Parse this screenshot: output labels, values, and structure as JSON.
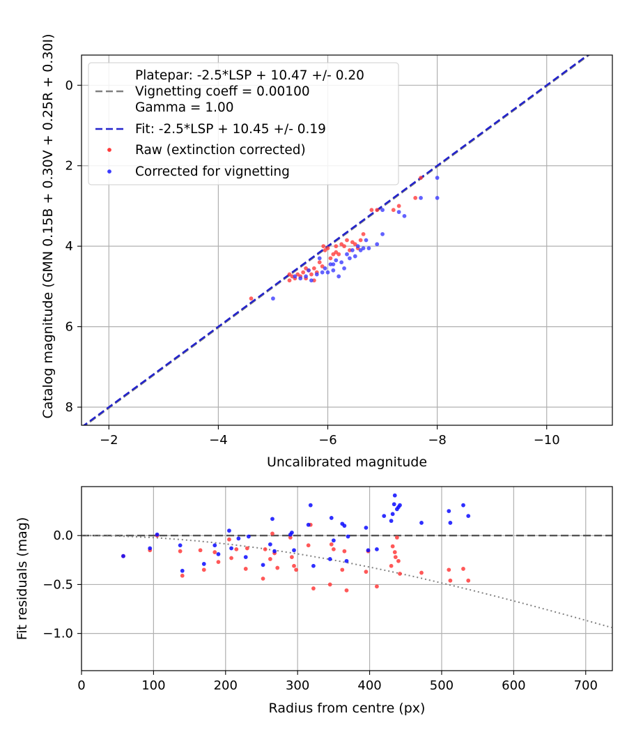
{
  "chart_data": [
    {
      "type": "scatter",
      "xlabel": "Uncalibrated magnitude",
      "ylabel": "Catalog magnitude (GMN 0.15B + 0.30V + 0.25R + 0.30I)",
      "xlim": [
        -1.5,
        -11.2
      ],
      "ylim": [
        8.45,
        -0.75
      ],
      "x_inverted": true,
      "y_inverted": true,
      "x_ticks": [
        -2,
        -4,
        -6,
        -8,
        -10
      ],
      "x_tick_labels": [
        "−2",
        "−4",
        "−6",
        "−8",
        "−10"
      ],
      "y_ticks": [
        0,
        2,
        4,
        6,
        8
      ],
      "y_tick_labels": [
        "0",
        "2",
        "4",
        "6",
        "8"
      ],
      "grid": true,
      "legend_position": "top-left",
      "legend": [
        {
          "label_lines": [
            "Platepar: -2.5*LSP + 10.47 +/- 0.20",
            "Vignetting coeff = 0.00100",
            "Gamma = 1.00"
          ],
          "style": "dashed",
          "color": "#808080"
        },
        {
          "label_lines": [
            "Fit: -2.5*LSP + 10.45 +/- 0.19"
          ],
          "style": "dashed",
          "color": "#2222cc"
        },
        {
          "label_lines": [
            "Raw (extinction corrected)"
          ],
          "style": "marker",
          "color": "#ff3b3b"
        },
        {
          "label_lines": [
            "Corrected for vignetting"
          ],
          "style": "marker",
          "color": "#3b3bff"
        }
      ],
      "lines": [
        {
          "name": "Platepar: -2.5*LSP + 10.47 +/- 0.20",
          "x": [
            -1.5,
            -11.2
          ],
          "y": [
            8.52,
            -1.18
          ],
          "color": "#808080",
          "style": "dashed"
        },
        {
          "name": "Fit: -2.5*LSP + 10.45 +/- 0.19",
          "x": [
            -1.5,
            -11.2
          ],
          "y": [
            8.5,
            -1.2
          ],
          "color": "#2222cc",
          "style": "dashed"
        }
      ],
      "series": [
        {
          "name": "Raw (extinction corrected)",
          "color": "#ff3b3b",
          "points": [
            [
              -4.6,
              5.3
            ],
            [
              -5.3,
              4.7
            ],
            [
              -5.35,
              4.75
            ],
            [
              -5.4,
              4.8
            ],
            [
              -5.45,
              4.7
            ],
            [
              -5.5,
              4.75
            ],
            [
              -5.55,
              4.65
            ],
            [
              -5.6,
              4.8
            ],
            [
              -5.65,
              4.6
            ],
            [
              -5.7,
              4.7
            ],
            [
              -5.75,
              4.55
            ],
            [
              -5.8,
              4.65
            ],
            [
              -5.85,
              4.4
            ],
            [
              -5.9,
              4.5
            ],
            [
              -5.92,
              4.0
            ],
            [
              -5.95,
              4.1
            ],
            [
              -6.0,
              4.05
            ],
            [
              -6.05,
              4.3
            ],
            [
              -6.1,
              4.2
            ],
            [
              -6.15,
              4.15
            ],
            [
              -6.2,
              4.2
            ],
            [
              -6.25,
              3.95
            ],
            [
              -6.3,
              4.0
            ],
            [
              -6.35,
              3.85
            ],
            [
              -6.4,
              4.1
            ],
            [
              -6.45,
              3.9
            ],
            [
              -6.5,
              3.95
            ],
            [
              -6.55,
              4.05
            ],
            [
              -6.6,
              3.85
            ],
            [
              -6.65,
              3.7
            ],
            [
              -6.8,
              3.1
            ],
            [
              -6.9,
              3.1
            ],
            [
              -7.2,
              3.1
            ],
            [
              -7.3,
              3.0
            ],
            [
              -7.6,
              2.8
            ],
            [
              -7.7,
              2.3
            ],
            [
              -5.6,
              4.55
            ],
            [
              -5.75,
              4.85
            ],
            [
              -6.15,
              4.0
            ],
            [
              -5.3,
              4.85
            ]
          ]
        },
        {
          "name": "Corrected for vignetting",
          "color": "#3b3bff",
          "points": [
            [
              -5.0,
              5.3
            ],
            [
              -5.4,
              4.75
            ],
            [
              -5.5,
              4.8
            ],
            [
              -5.6,
              4.75
            ],
            [
              -5.7,
              4.85
            ],
            [
              -5.8,
              4.7
            ],
            [
              -5.85,
              4.3
            ],
            [
              -5.9,
              4.65
            ],
            [
              -5.95,
              4.55
            ],
            [
              -6.0,
              4.65
            ],
            [
              -6.05,
              4.45
            ],
            [
              -6.1,
              4.6
            ],
            [
              -6.15,
              4.35
            ],
            [
              -6.2,
              4.75
            ],
            [
              -6.25,
              4.4
            ],
            [
              -6.3,
              4.55
            ],
            [
              -6.35,
              4.2
            ],
            [
              -6.4,
              4.3
            ],
            [
              -6.45,
              4.1
            ],
            [
              -6.5,
              4.25
            ],
            [
              -6.55,
              4.0
            ],
            [
              -6.6,
              4.1
            ],
            [
              -6.65,
              4.05
            ],
            [
              -6.7,
              3.85
            ],
            [
              -6.75,
              4.05
            ],
            [
              -6.9,
              3.95
            ],
            [
              -7.0,
              3.7
            ],
            [
              -7.0,
              3.1
            ],
            [
              -7.3,
              3.15
            ],
            [
              -7.4,
              3.25
            ],
            [
              -7.7,
              2.8
            ],
            [
              -8.0,
              2.8
            ],
            [
              -8.0,
              2.3
            ],
            [
              -6.1,
              4.45
            ],
            [
              -5.65,
              4.6
            ]
          ]
        }
      ]
    },
    {
      "type": "scatter",
      "xlabel": "Radius from centre (px)",
      "ylabel": "Fit residuals (mag)",
      "xlim": [
        0,
        737
      ],
      "ylim": [
        -1.38,
        0.5
      ],
      "x_ticks": [
        0,
        100,
        200,
        300,
        400,
        500,
        600,
        700
      ],
      "x_tick_labels": [
        "0",
        "100",
        "200",
        "300",
        "400",
        "500",
        "600",
        "700"
      ],
      "y_ticks": [
        0.0,
        -0.5,
        -1.0
      ],
      "y_tick_labels": [
        "0.0",
        "−0.5",
        "−1.0"
      ],
      "grid": true,
      "lines": [
        {
          "name": "zero",
          "x": [
            0,
            737
          ],
          "y": [
            0,
            0
          ],
          "color": "#555555",
          "style": "dashed"
        },
        {
          "name": "vignetting",
          "style": "dotted",
          "color": "#808080",
          "vignetting_coeff": 0.001
        }
      ],
      "series": [
        {
          "name": "Raw (extinction corrected)",
          "color": "#ff3b3b",
          "points": [
            [
              58,
              -0.21
            ],
            [
              95,
              -0.15
            ],
            [
              105,
              0.0
            ],
            [
              137,
              -0.16
            ],
            [
              140,
              -0.41
            ],
            [
              165,
              -0.15
            ],
            [
              170,
              -0.35
            ],
            [
              185,
              -0.17
            ],
            [
              190,
              -0.27
            ],
            [
              205,
              -0.04
            ],
            [
              208,
              -0.23
            ],
            [
              215,
              -0.14
            ],
            [
              228,
              -0.34
            ],
            [
              230,
              -0.13
            ],
            [
              252,
              -0.44
            ],
            [
              255,
              -0.14
            ],
            [
              262,
              -0.24
            ],
            [
              265,
              0.02
            ],
            [
              268,
              -0.18
            ],
            [
              272,
              -0.33
            ],
            [
              290,
              -0.02
            ],
            [
              292,
              -0.22
            ],
            [
              295,
              -0.31
            ],
            [
              298,
              -0.35
            ],
            [
              315,
              -0.1
            ],
            [
              318,
              0.11
            ],
            [
              322,
              -0.54
            ],
            [
              345,
              -0.5
            ],
            [
              347,
              -0.09
            ],
            [
              350,
              -0.14
            ],
            [
              362,
              -0.35
            ],
            [
              365,
              -0.16
            ],
            [
              368,
              -0.56
            ],
            [
              395,
              -0.37
            ],
            [
              398,
              -0.16
            ],
            [
              410,
              -0.52
            ],
            [
              430,
              -0.31
            ],
            [
              432,
              -0.11
            ],
            [
              435,
              -0.17
            ],
            [
              436,
              -0.22
            ],
            [
              438,
              -0.02
            ],
            [
              440,
              -0.26
            ],
            [
              442,
              -0.39
            ],
            [
              472,
              -0.38
            ],
            [
              510,
              -0.35
            ],
            [
              512,
              -0.46
            ],
            [
              530,
              -0.34
            ],
            [
              537,
              -0.46
            ]
          ]
        },
        {
          "name": "Corrected for vignetting",
          "color": "#0a0aff",
          "points": [
            [
              58,
              -0.21
            ],
            [
              95,
              -0.13
            ],
            [
              105,
              0.01
            ],
            [
              137,
              -0.1
            ],
            [
              140,
              -0.36
            ],
            [
              170,
              -0.29
            ],
            [
              185,
              -0.1
            ],
            [
              190,
              -0.19
            ],
            [
              205,
              0.05
            ],
            [
              208,
              -0.13
            ],
            [
              218,
              -0.03
            ],
            [
              228,
              -0.22
            ],
            [
              232,
              -0.01
            ],
            [
              252,
              -0.3
            ],
            [
              262,
              -0.09
            ],
            [
              265,
              0.17
            ],
            [
              268,
              -0.16
            ],
            [
              290,
              0.01
            ],
            [
              292,
              0.03
            ],
            [
              295,
              -0.15
            ],
            [
              315,
              0.11
            ],
            [
              318,
              0.31
            ],
            [
              322,
              -0.31
            ],
            [
              345,
              -0.24
            ],
            [
              347,
              0.18
            ],
            [
              350,
              -0.05
            ],
            [
              362,
              0.12
            ],
            [
              365,
              0.1
            ],
            [
              368,
              -0.26
            ],
            [
              370,
              -0.01
            ],
            [
              395,
              0.08
            ],
            [
              398,
              -0.15
            ],
            [
              410,
              -0.14
            ],
            [
              420,
              0.2
            ],
            [
              430,
              0.15
            ],
            [
              432,
              0.22
            ],
            [
              434,
              0.32
            ],
            [
              435,
              0.41
            ],
            [
              438,
              0.27
            ],
            [
              440,
              0.29
            ],
            [
              442,
              0.31
            ],
            [
              472,
              0.13
            ],
            [
              510,
              0.25
            ],
            [
              512,
              0.13
            ],
            [
              530,
              0.31
            ],
            [
              537,
              0.2
            ]
          ]
        }
      ]
    }
  ]
}
